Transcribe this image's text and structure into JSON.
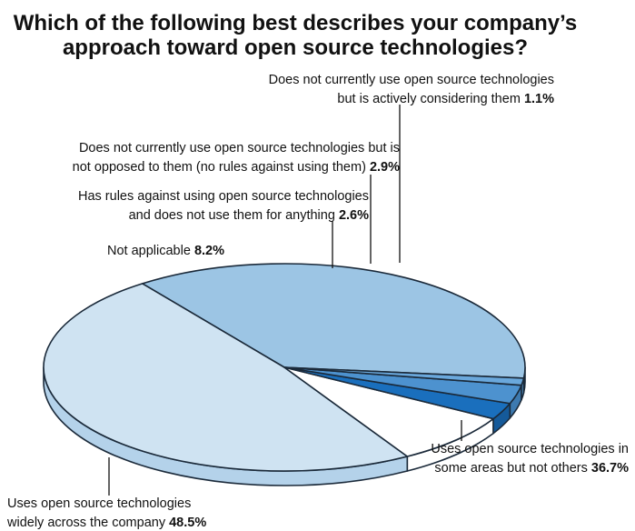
{
  "chart_data": {
    "type": "pie",
    "title": [
      "Which of the following best describes your company’s",
      "approach toward open source technologies?"
    ],
    "slices": [
      {
        "label": [
          "Uses open source technologies in",
          "some areas but not others"
        ],
        "value": 36.7,
        "value_text": "36.7%",
        "color": "#9cc5e4",
        "side_color": "#7fb0d6"
      },
      {
        "label": [
          "Uses open source technologies",
          "widely across the company"
        ],
        "value": 48.5,
        "value_text": "48.5%",
        "color": "#cfe3f2",
        "side_color": "#b4d2ea"
      },
      {
        "label": [
          "Not applicable"
        ],
        "value": 8.2,
        "value_text": "8.2%",
        "color": "#ffffff",
        "side_color": "#ffffff"
      },
      {
        "label": [
          "Has rules against using open source technologies",
          "and does not use them for anything"
        ],
        "value": 2.6,
        "value_text": "2.6%",
        "color": "#1a6fbd",
        "side_color": "#155a9a"
      },
      {
        "label": [
          "Does not currently use open source technologies but is",
          "not opposed to them (no rules against using them)"
        ],
        "value": 2.9,
        "value_text": "2.9%",
        "color": "#4d92cf",
        "side_color": "#3d7ab0"
      },
      {
        "label": [
          "Does not currently use open source technologies",
          "but is actively considering them"
        ],
        "value": 1.1,
        "value_text": "1.1%",
        "color": "#6aa8dc",
        "side_color": "#5590c0"
      }
    ]
  }
}
